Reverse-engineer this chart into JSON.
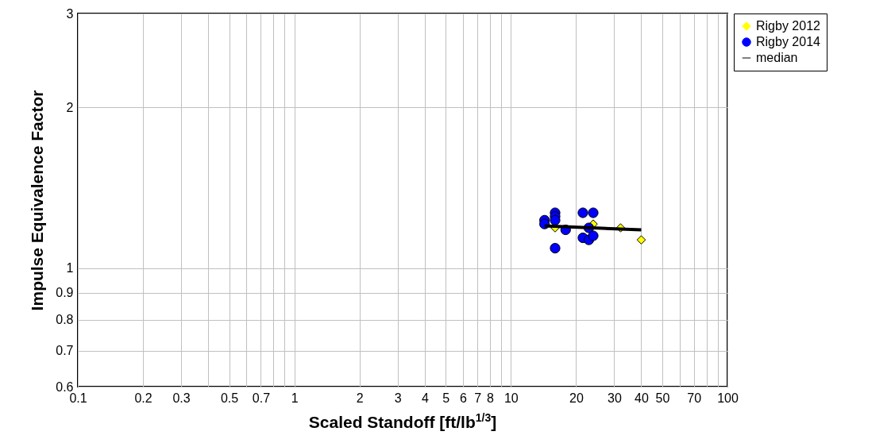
{
  "chart_data": {
    "type": "scatter",
    "xlabel": "Scaled Standoff [ft/lb$^{1/3}$]",
    "ylabel": "Impulse Equivalence Factor",
    "log": "xy",
    "grid": true,
    "legend": "top right",
    "xlim": [
      0.1,
      100
    ],
    "ylim": [
      0.6,
      3
    ],
    "xticks": [
      0.1,
      0.2,
      0.3,
      {
        "value": 0.4,
        "label": null
      },
      0.5,
      {
        "value": 0.6,
        "label": null
      },
      0.7,
      {
        "value": 0.8,
        "label": null
      },
      {
        "value": 0.9,
        "label": null
      },
      1,
      2,
      3,
      4,
      5,
      6,
      7,
      8,
      {
        "value": 9,
        "label": null
      },
      10,
      20,
      30,
      40,
      50,
      {
        "value": 60,
        "label": null
      },
      70,
      {
        "value": 80,
        "label": null
      },
      {
        "value": 90,
        "label": null
      },
      100
    ],
    "yticks": [
      0.6,
      0.7,
      0.8,
      0.9,
      1,
      2,
      3
    ],
    "series": [
      {
        "name": "Rigby 2012",
        "marker": "diamond",
        "color": "#ffff00",
        "x": [
          16.0,
          24.0,
          32.1,
          40.0
        ],
        "values": [
          1.19,
          1.21,
          1.19,
          1.13
        ]
      },
      {
        "name": "Rigby 2014",
        "marker": "circle",
        "color": "#0000ff",
        "x": [
          14.3,
          14.3,
          16.0,
          16.0,
          16.0,
          16.0,
          17.9,
          21.5,
          24.0,
          22.9,
          21.5,
          22.9,
          24.0
        ],
        "values": [
          1.23,
          1.21,
          1.27,
          1.25,
          1.23,
          1.09,
          1.18,
          1.27,
          1.27,
          1.19,
          1.14,
          1.13,
          1.15
        ]
      },
      {
        "name": "median",
        "type": "line",
        "marker": "none",
        "color": "#000000",
        "x": [
          14.3,
          40.0
        ],
        "values": [
          1.2,
          1.18
        ]
      }
    ]
  }
}
